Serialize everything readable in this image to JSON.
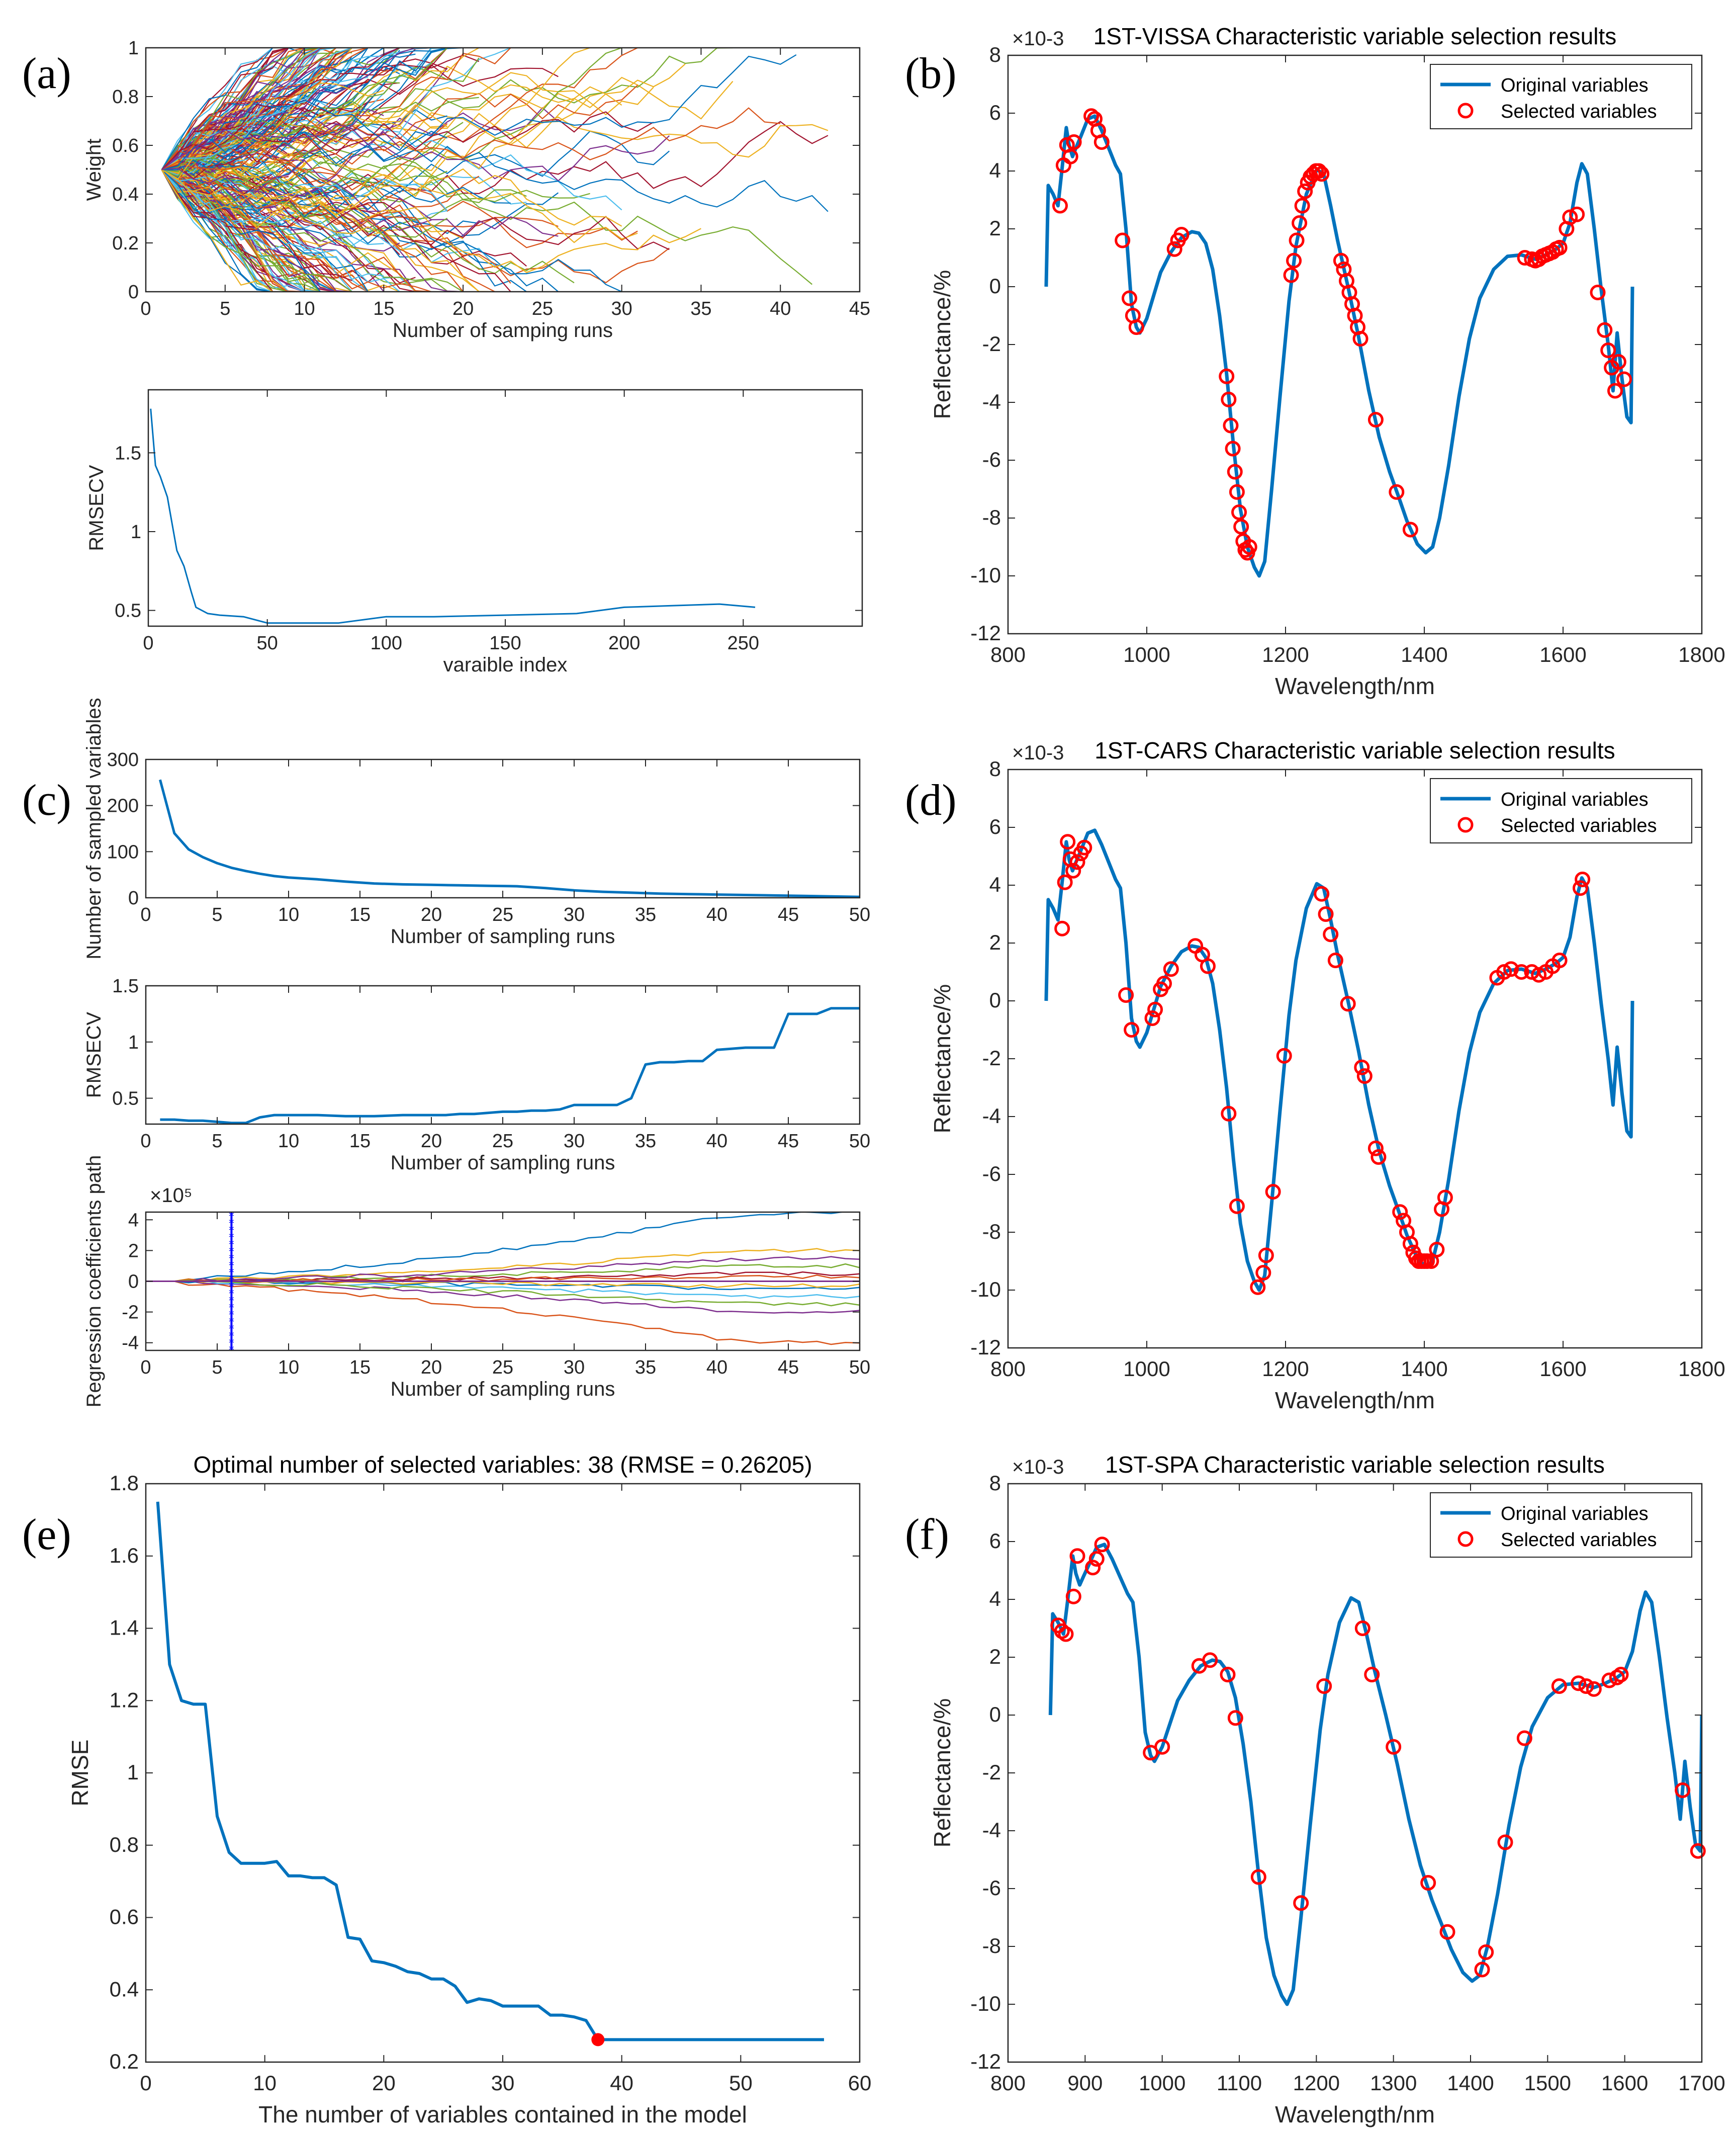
{
  "colors": {
    "line": "#0072BD",
    "marker": "#FF0000",
    "axis": "#262626",
    "sample": "#0000FF",
    "zero": "#7E2F8E"
  },
  "labels": {
    "a": "(a)",
    "b": "(b)",
    "c": "(c)",
    "d": "(d)",
    "e": "(e)",
    "f": "(f)"
  },
  "chart_data": [
    {
      "id": "a1",
      "type": "line",
      "title": "",
      "xlabel": "Number of samping runs",
      "ylabel": "Weight",
      "xlim": [
        0,
        45
      ],
      "ylim": [
        0,
        1
      ],
      "xticks": [
        0,
        5,
        10,
        15,
        20,
        25,
        30,
        35,
        40,
        45
      ],
      "yticks": [
        0,
        0.2,
        0.4,
        0.6,
        0.8,
        1
      ],
      "series_count": 256,
      "notes": "Weight trajectories of all 256 variables starting at 0.5 at run 1 and diverging towards 0 or 1 by run ~44"
    },
    {
      "id": "a2",
      "type": "line",
      "title": "",
      "xlabel": "varaible index",
      "ylabel": "RMSECV",
      "xlim": [
        0,
        300
      ],
      "ylim": [
        0.4,
        1.9
      ],
      "xticks": [
        0,
        50,
        100,
        150,
        200,
        250
      ],
      "yticks": [
        0.5,
        1,
        1.5
      ],
      "x": [
        1,
        3,
        5,
        8,
        10,
        12,
        15,
        18,
        20,
        25,
        30,
        40,
        50,
        60,
        80,
        100,
        120,
        150,
        180,
        200,
        220,
        240,
        255
      ],
      "y": [
        1.78,
        1.42,
        1.35,
        1.22,
        1.05,
        0.88,
        0.78,
        0.62,
        0.52,
        0.48,
        0.47,
        0.46,
        0.42,
        0.42,
        0.42,
        0.46,
        0.46,
        0.47,
        0.48,
        0.52,
        0.53,
        0.54,
        0.52
      ]
    },
    {
      "id": "b",
      "type": "line",
      "title": "1ST-VISSA Characteristic variable selection results",
      "xlabel": "Wavelength/nm",
      "ylabel": "Reflectance/%",
      "multiplier": "×10-3",
      "xlim": [
        800,
        1800
      ],
      "ylim": [
        -12,
        8
      ],
      "xticks": [
        800,
        1000,
        1200,
        1400,
        1600,
        1800
      ],
      "yticks": [
        -12,
        -10,
        -8,
        -6,
        -4,
        -2,
        0,
        2,
        4,
        6,
        8
      ],
      "legend": [
        "Original variables",
        "Selected variables"
      ],
      "selected_x": [
        875,
        880,
        885,
        890,
        895,
        920,
        925,
        930,
        935,
        965,
        975,
        980,
        985,
        1040,
        1045,
        1050,
        1115,
        1118,
        1121,
        1124,
        1127,
        1130,
        1133,
        1136,
        1139,
        1142,
        1145,
        1148,
        1208,
        1212,
        1216,
        1220,
        1224,
        1228,
        1232,
        1236,
        1240,
        1244,
        1248,
        1252,
        1280,
        1284,
        1288,
        1292,
        1296,
        1300,
        1304,
        1308,
        1330,
        1360,
        1380,
        1545,
        1555,
        1560,
        1565,
        1570,
        1575,
        1580,
        1585,
        1590,
        1595,
        1605,
        1610,
        1620,
        1650,
        1660,
        1665,
        1670,
        1675,
        1680,
        1688
      ],
      "selected_y": [
        2.8,
        4.2,
        4.9,
        4.5,
        5.0,
        5.9,
        5.8,
        5.4,
        5.0,
        1.6,
        -0.4,
        -1.0,
        -1.4,
        1.3,
        1.6,
        1.8,
        -3.1,
        -3.9,
        -4.8,
        -5.6,
        -6.4,
        -7.1,
        -7.8,
        -8.3,
        -8.8,
        -9.1,
        -9.2,
        -9.0,
        0.4,
        0.9,
        1.6,
        2.2,
        2.8,
        3.3,
        3.6,
        3.8,
        3.9,
        4.0,
        4.0,
        3.9,
        0.9,
        0.6,
        0.2,
        -0.2,
        -0.6,
        -1.0,
        -1.4,
        -1.8,
        -4.6,
        -7.1,
        -8.4,
        1.0,
        0.95,
        0.9,
        0.95,
        1.05,
        1.1,
        1.15,
        1.2,
        1.3,
        1.35,
        2.0,
        2.4,
        2.5,
        -0.2,
        -1.5,
        -2.2,
        -2.8,
        -3.6,
        -2.6,
        -3.2
      ]
    },
    {
      "id": "c1",
      "type": "line",
      "title": "",
      "xlabel": "Number of sampling runs",
      "ylabel": "Number of sampled variables",
      "xlim": [
        0,
        50
      ],
      "ylim": [
        0,
        300
      ],
      "xticks": [
        0,
        5,
        10,
        15,
        20,
        25,
        30,
        35,
        40,
        45,
        50
      ],
      "yticks": [
        0,
        100,
        200,
        300
      ],
      "x": [
        1,
        2,
        3,
        4,
        5,
        6,
        7,
        8,
        9,
        10,
        12,
        14,
        16,
        18,
        20,
        22,
        24,
        26,
        28,
        30,
        32,
        34,
        36,
        38,
        40,
        42,
        44,
        46,
        48,
        50
      ],
      "y": [
        256,
        140,
        105,
        88,
        75,
        65,
        58,
        52,
        47,
        44,
        40,
        35,
        31,
        29,
        28,
        27,
        26,
        25,
        21,
        16,
        13,
        11,
        9,
        8,
        7,
        6,
        5,
        4,
        3,
        2
      ]
    },
    {
      "id": "c2",
      "type": "line",
      "title": "",
      "xlabel": "Number of sampling runs",
      "ylabel": "RMSECV",
      "xlim": [
        0,
        50
      ],
      "ylim": [
        0.27,
        1.5
      ],
      "xticks": [
        0,
        5,
        10,
        15,
        20,
        25,
        30,
        35,
        40,
        45,
        50
      ],
      "yticks": [
        0.5,
        1,
        1.5
      ],
      "x": [
        1,
        2,
        3,
        4,
        5,
        6,
        7,
        8,
        9,
        10,
        12,
        14,
        16,
        18,
        20,
        21,
        22,
        23,
        24,
        25,
        26,
        27,
        28,
        29,
        30,
        31,
        32,
        33,
        34,
        35,
        36,
        37,
        38,
        39,
        40,
        41,
        42,
        43,
        44,
        45,
        46,
        47,
        48,
        49,
        50
      ],
      "y": [
        0.31,
        0.31,
        0.3,
        0.3,
        0.29,
        0.28,
        0.28,
        0.33,
        0.35,
        0.35,
        0.35,
        0.34,
        0.34,
        0.35,
        0.35,
        0.35,
        0.36,
        0.36,
        0.37,
        0.38,
        0.38,
        0.39,
        0.39,
        0.4,
        0.44,
        0.44,
        0.44,
        0.44,
        0.5,
        0.8,
        0.82,
        0.82,
        0.83,
        0.83,
        0.93,
        0.94,
        0.95,
        0.95,
        0.95,
        1.25,
        1.25,
        1.25,
        1.3,
        1.3,
        1.3
      ]
    },
    {
      "id": "c3",
      "type": "line",
      "title": "",
      "xlabel": "Number of sampling runs",
      "ylabel": "Regression coefficients path",
      "multiplier": "×10⁵",
      "xlim": [
        0,
        50
      ],
      "ylim": [
        -4.5,
        4.5
      ],
      "xticks": [
        0,
        5,
        10,
        15,
        20,
        25,
        30,
        35,
        40,
        45,
        50
      ],
      "yticks": [
        -4,
        -2,
        0,
        2,
        4
      ],
      "optimal_run": 6,
      "notes": "Coefficient paths of selected variables; blue starred vertical line marks the optimal sampling run"
    },
    {
      "id": "d",
      "type": "line",
      "title": "1ST-CARS Characteristic variable selection results",
      "xlabel": "Wavelength/nm",
      "ylabel": "Reflectance/%",
      "multiplier": "×10-3",
      "xlim": [
        800,
        1800
      ],
      "ylim": [
        -12,
        8
      ],
      "xticks": [
        800,
        1000,
        1200,
        1400,
        1600,
        1800
      ],
      "yticks": [
        -12,
        -10,
        -8,
        -6,
        -4,
        -2,
        0,
        2,
        4,
        6,
        8
      ],
      "legend": [
        "Original variables",
        "Selected variables"
      ],
      "selected_x": [
        878,
        882,
        886,
        890,
        894,
        900,
        905,
        910,
        970,
        978,
        1008,
        1012,
        1020,
        1025,
        1035,
        1070,
        1080,
        1088,
        1118,
        1130,
        1160,
        1168,
        1172,
        1182,
        1198,
        1252,
        1258,
        1265,
        1272,
        1290,
        1310,
        1314,
        1330,
        1334,
        1365,
        1370,
        1375,
        1380,
        1384,
        1388,
        1392,
        1396,
        1400,
        1404,
        1410,
        1418,
        1425,
        1430,
        1505,
        1515,
        1525,
        1540,
        1555,
        1565,
        1575,
        1585,
        1595,
        1625,
        1628
      ],
      "selected_y": [
        2.5,
        4.1,
        5.5,
        4.9,
        4.5,
        4.8,
        5.1,
        5.3,
        0.2,
        -1.0,
        -0.6,
        -0.3,
        0.4,
        0.6,
        1.1,
        1.9,
        1.6,
        1.2,
        -3.9,
        -7.1,
        -9.9,
        -9.4,
        -8.8,
        -6.6,
        -1.9,
        3.7,
        3.0,
        2.3,
        1.4,
        -0.1,
        -2.3,
        -2.6,
        -5.1,
        -5.4,
        -7.3,
        -7.6,
        -8.0,
        -8.4,
        -8.7,
        -8.9,
        -9.0,
        -9.0,
        -9.0,
        -9.0,
        -9.0,
        -8.6,
        -7.2,
        -6.8,
        0.8,
        1.0,
        1.1,
        1.0,
        1.0,
        0.9,
        1.0,
        1.2,
        1.4,
        3.9,
        4.2
      ]
    },
    {
      "id": "e",
      "type": "line",
      "title": "Optimal number of selected variables: 38  (RMSE = 0.26205)",
      "xlabel": "The number of variables contained in the model",
      "ylabel": "RMSE",
      "xlim": [
        0,
        60
      ],
      "ylim": [
        0.2,
        1.8
      ],
      "xticks": [
        0,
        10,
        20,
        30,
        40,
        50,
        60
      ],
      "yticks": [
        0.2,
        0.4,
        0.6,
        0.8,
        1,
        1.2,
        1.4,
        1.6,
        1.8
      ],
      "x": [
        1,
        2,
        3,
        4,
        5,
        6,
        7,
        8,
        9,
        10,
        11,
        12,
        13,
        14,
        15,
        16,
        17,
        18,
        19,
        20,
        21,
        22,
        23,
        24,
        25,
        26,
        27,
        28,
        29,
        30,
        31,
        32,
        33,
        34,
        35,
        36,
        37,
        38,
        39,
        40,
        45,
        50,
        57
      ],
      "y": [
        1.75,
        1.3,
        1.2,
        1.19,
        1.19,
        0.88,
        0.78,
        0.75,
        0.75,
        0.75,
        0.755,
        0.715,
        0.715,
        0.71,
        0.71,
        0.69,
        0.545,
        0.54,
        0.48,
        0.475,
        0.465,
        0.45,
        0.445,
        0.43,
        0.43,
        0.41,
        0.365,
        0.375,
        0.37,
        0.355,
        0.355,
        0.355,
        0.355,
        0.33,
        0.33,
        0.325,
        0.315,
        0.262,
        0.262,
        0.262,
        0.262,
        0.262,
        0.262
      ],
      "optimal": {
        "x": 38,
        "y": 0.26205
      }
    },
    {
      "id": "f",
      "type": "line",
      "title": "1ST-SPA Characteristic variable selection results",
      "xlabel": "Wavelength/nm",
      "ylabel": "Reflectance/%",
      "multiplier": "×10-3",
      "xlim": [
        800,
        1700
      ],
      "ylim": [
        -12,
        8
      ],
      "xticks": [
        800,
        900,
        1000,
        1100,
        1200,
        1300,
        1400,
        1500,
        1600,
        1700
      ],
      "yticks": [
        -12,
        -10,
        -8,
        -6,
        -4,
        -2,
        0,
        2,
        4,
        6,
        8
      ],
      "legend": [
        "Original variables",
        "Selected variables"
      ],
      "selected_x": [
        865,
        870,
        875,
        885,
        890,
        910,
        915,
        922,
        985,
        1000,
        1048,
        1062,
        1085,
        1095,
        1125,
        1180,
        1210,
        1260,
        1272,
        1300,
        1345,
        1370,
        1415,
        1420,
        1445,
        1470,
        1515,
        1540,
        1550,
        1560,
        1580,
        1590,
        1595,
        1675,
        1695
      ],
      "selected_y": [
        3.1,
        2.9,
        2.8,
        4.1,
        5.5,
        5.1,
        5.4,
        5.9,
        -1.3,
        -1.1,
        1.7,
        1.9,
        1.4,
        -0.1,
        -5.6,
        -6.5,
        1.0,
        3.0,
        1.4,
        -1.1,
        -5.8,
        -7.5,
        -8.8,
        -8.2,
        -4.4,
        -0.8,
        1.0,
        1.1,
        1.0,
        0.9,
        1.2,
        1.3,
        1.4,
        -2.6,
        -4.7
      ]
    }
  ]
}
